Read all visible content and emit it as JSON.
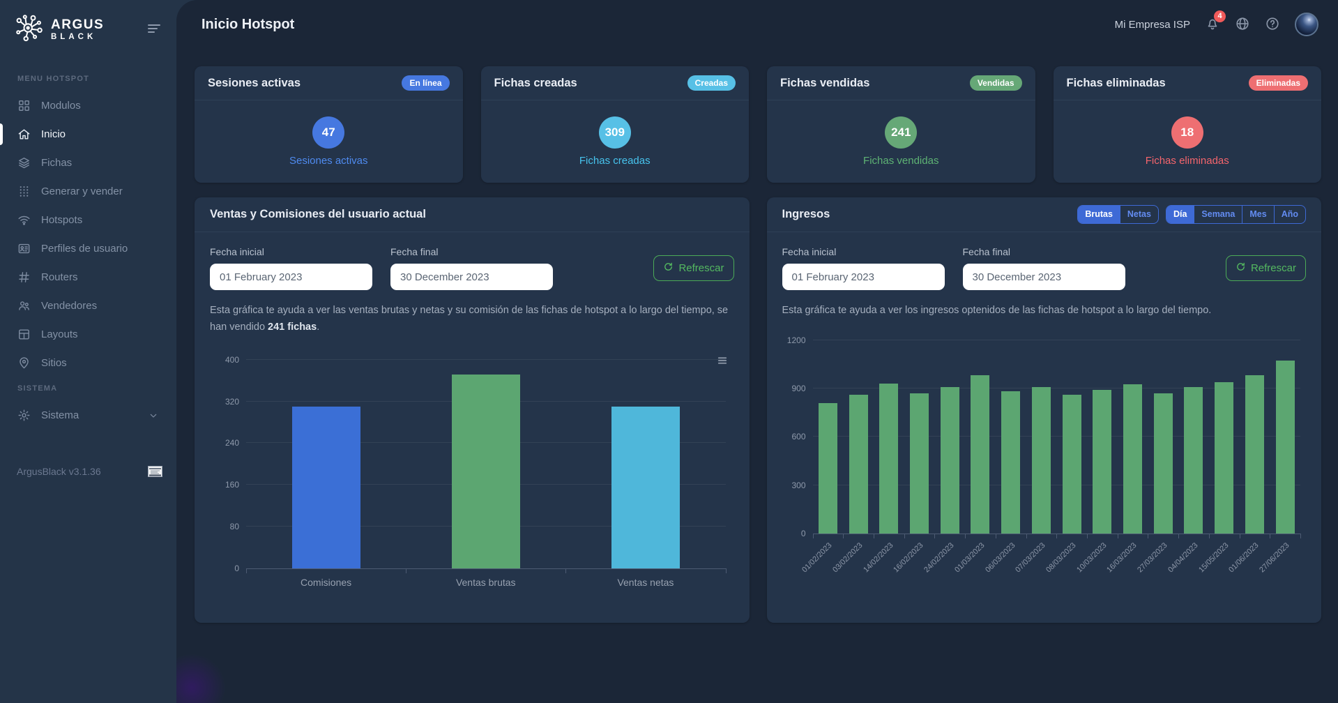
{
  "brand": {
    "line1": "ARGUS",
    "line2": "BLACK"
  },
  "sidebar": {
    "sections": [
      {
        "label": "MENU HOTSPOT",
        "items": [
          {
            "label": "Modulos",
            "icon": "modules-icon",
            "active": false
          },
          {
            "label": "Inicio",
            "icon": "home-icon",
            "active": true
          },
          {
            "label": "Fichas",
            "icon": "layers-icon",
            "active": false
          },
          {
            "label": "Generar y vender",
            "icon": "dots-grid-icon",
            "active": false
          },
          {
            "label": "Hotspots",
            "icon": "wifi-icon",
            "active": false
          },
          {
            "label": "Perfiles de usuario",
            "icon": "user-profile-icon",
            "active": false
          },
          {
            "label": "Routers",
            "icon": "hash-icon",
            "active": false
          },
          {
            "label": "Vendedores",
            "icon": "users-icon",
            "active": false
          },
          {
            "label": "Layouts",
            "icon": "layout-icon",
            "active": false
          },
          {
            "label": "Sitios",
            "icon": "map-pin-icon",
            "active": false
          }
        ]
      },
      {
        "label": "SISTEMA",
        "items": [
          {
            "label": "Sistema",
            "icon": "gear-icon",
            "active": false,
            "expandable": true
          }
        ]
      }
    ],
    "version": "ArgusBlack v3.1.36"
  },
  "header": {
    "title": "Inicio Hotspot",
    "company": "Mi Empresa ISP",
    "notification_count": "4"
  },
  "stat_cards": [
    {
      "title": "Sesiones activas",
      "badge": "En línea",
      "value": "47",
      "label": "Sesiones activas",
      "color": "#4678e0",
      "text_color": "#4f8bf0"
    },
    {
      "title": "Fichas creadas",
      "badge": "Creadas",
      "value": "309",
      "label": "Fichas creadas",
      "color": "#57c0e6",
      "text_color": "#47c4ee"
    },
    {
      "title": "Fichas vendidas",
      "badge": "Vendidas",
      "value": "241",
      "label": "Fichas vendidas",
      "color": "#66a877",
      "text_color": "#5eb374"
    },
    {
      "title": "Fichas eliminadas",
      "badge": "Eliminadas",
      "value": "18",
      "label": "Fichas eliminadas",
      "color": "#ee6f72",
      "text_color": "#f5656c"
    }
  ],
  "ventas_panel": {
    "title": "Ventas y Comisiones del usuario actual",
    "fecha_inicial_label": "Fecha inicial",
    "fecha_inicial_value": "01 February 2023",
    "fecha_final_label": "Fecha final",
    "fecha_final_value": "30 December 2023",
    "refresh_label": "Refrescar",
    "description_before": "Esta gráfica te ayuda a ver las ventas brutas y netas y su comisión de las fichas de hotspot a lo largo del tiempo, se han vendido ",
    "description_bold": "241 fichas",
    "description_after": "."
  },
  "ingresos_panel": {
    "title": "Ingresos",
    "type_buttons": [
      {
        "label": "Brutas",
        "active": true
      },
      {
        "label": "Netas",
        "active": false
      }
    ],
    "period_buttons": [
      {
        "label": "Día",
        "active": true
      },
      {
        "label": "Semana",
        "active": false
      },
      {
        "label": "Mes",
        "active": false
      },
      {
        "label": "Año",
        "active": false
      }
    ],
    "fecha_inicial_label": "Fecha inicial",
    "fecha_inicial_value": "01 February 2023",
    "fecha_final_label": "Fecha final",
    "fecha_final_value": "30 December 2023",
    "refresh_label": "Refrescar",
    "description": "Esta gráfica te ayuda a ver los ingresos optenidos de las fichas de hotspot a lo largo del tiempo."
  },
  "chart_data": [
    {
      "id": "ventas",
      "type": "bar",
      "title": "Ventas y Comisiones del usuario actual",
      "categories": [
        "Comisiones",
        "Ventas brutas",
        "Ventas netas"
      ],
      "values": [
        310,
        372,
        310
      ],
      "colors": [
        "#3b6fd6",
        "#5ca671",
        "#4fb7da"
      ],
      "xlabel": "",
      "ylabel": "",
      "ylim": [
        0,
        400
      ],
      "yticks": [
        0,
        80,
        160,
        240,
        320,
        400
      ],
      "grid": true,
      "legend": "none"
    },
    {
      "id": "ingresos",
      "type": "bar",
      "title": "Ingresos",
      "categories": [
        "01/02/2023",
        "03/02/2023",
        "14/02/2023",
        "16/02/2023",
        "24/02/2023",
        "01/03/2023",
        "06/03/2023",
        "07/03/2023",
        "08/03/2023",
        "10/03/2023",
        "16/03/2023",
        "27/03/2023",
        "04/04/2023",
        "15/05/2023",
        "01/06/2023",
        "27/06/2023"
      ],
      "values": [
        810,
        860,
        930,
        870,
        910,
        985,
        885,
        910,
        860,
        890,
        925,
        870,
        910,
        940,
        985,
        1075
      ],
      "colors": [
        "#5ca671"
      ],
      "xlabel": "",
      "ylabel": "",
      "ylim": [
        0,
        1200
      ],
      "yticks": [
        0,
        300,
        600,
        900,
        1200
      ],
      "grid": true,
      "legend": "none"
    }
  ],
  "ui_colors": {
    "page_bg": "#1b2637",
    "sidebar_bg": "#243448",
    "panel_bg": "#24344a",
    "accent_blue": "#3e6ad6",
    "accent_green": "#4cab57",
    "notification_red": "#f05a5a"
  }
}
